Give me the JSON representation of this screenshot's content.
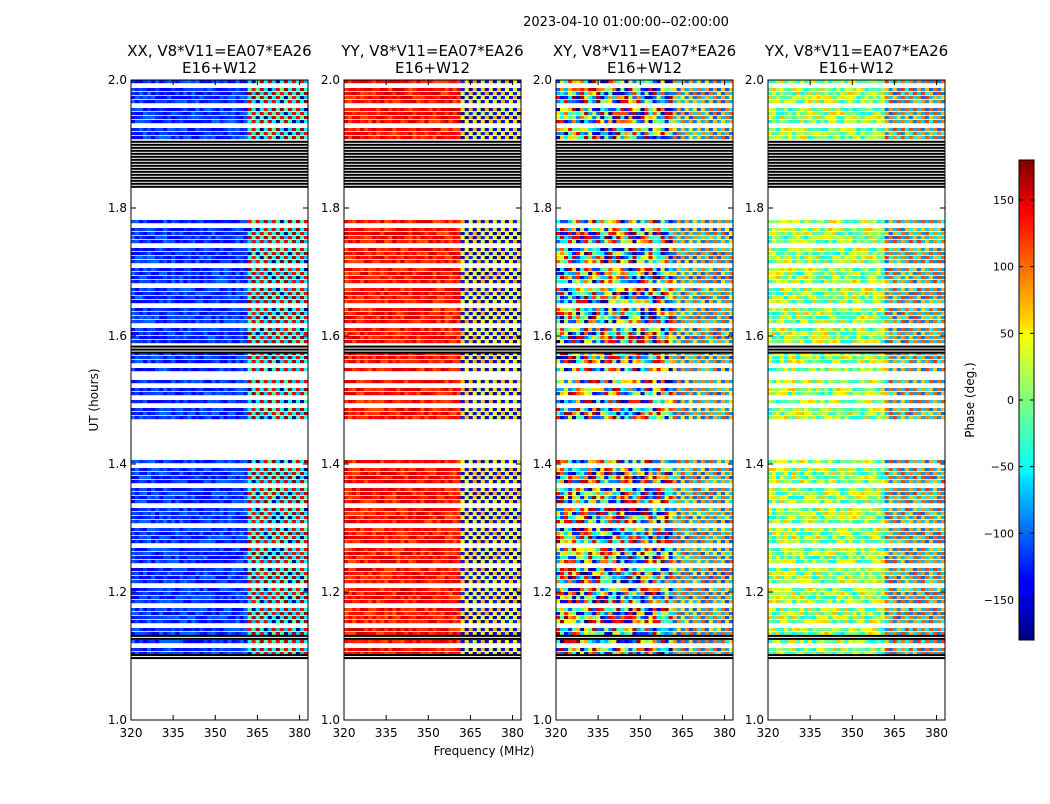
{
  "figure": {
    "suptitle": "2023-04-10  01:00:00--02:00:00",
    "xlabel": "Frequency (MHz)",
    "ylabel": "UT (hours)"
  },
  "chart_data": {
    "type": "heatmap",
    "x_range": [
      320,
      383
    ],
    "y_range": [
      1.0,
      2.0
    ],
    "x_ticks": [
      320,
      335,
      350,
      365,
      380
    ],
    "y_ticks": [
      1.0,
      1.2,
      1.4,
      1.6,
      1.8,
      2.0
    ],
    "y_tick_labels": [
      "1.0",
      "1.2",
      "1.4",
      "1.6",
      "1.8",
      "2.0"
    ],
    "flag_bands": [
      [
        1.83,
        1.905
      ],
      [
        1.572,
        1.585
      ],
      [
        1.125,
        1.133
      ],
      [
        1.095,
        1.103
      ]
    ],
    "blank_bands": [
      [
        1.78,
        1.83
      ],
      [
        1.53,
        1.545
      ],
      [
        1.5,
        1.505
      ],
      [
        1.405,
        1.47
      ],
      [
        1.0,
        1.095
      ]
    ],
    "panels": [
      {
        "title_line1": "XX, V8*V11=EA07*EA26",
        "title_line2": "E16+W12",
        "base_phase": -120,
        "noise": 25,
        "transition_mhz": 362
      },
      {
        "title_line1": "YY, V8*V11=EA07*EA26",
        "title_line2": "E16+W12",
        "base_phase": 130,
        "noise": 25,
        "transition_mhz": 361
      },
      {
        "title_line1": "XY, V8*V11=EA07*EA26",
        "title_line2": "E16+W12",
        "base_phase": 0,
        "noise": 180,
        "transition_mhz": 362
      },
      {
        "title_line1": "YX, V8*V11=EA07*EA26",
        "title_line2": "E16+W12",
        "base_phase": 10,
        "noise": 60,
        "transition_mhz": 362
      }
    ],
    "colorbar": {
      "label": "Phase (deg.)",
      "range": [
        -180,
        180
      ],
      "ticks": [
        150,
        100,
        50,
        0,
        -50,
        -100,
        -150
      ],
      "tick_labels": [
        "150",
        "100",
        "50",
        "0",
        "−50",
        "−100",
        "−150"
      ],
      "colormap": "jet"
    }
  }
}
